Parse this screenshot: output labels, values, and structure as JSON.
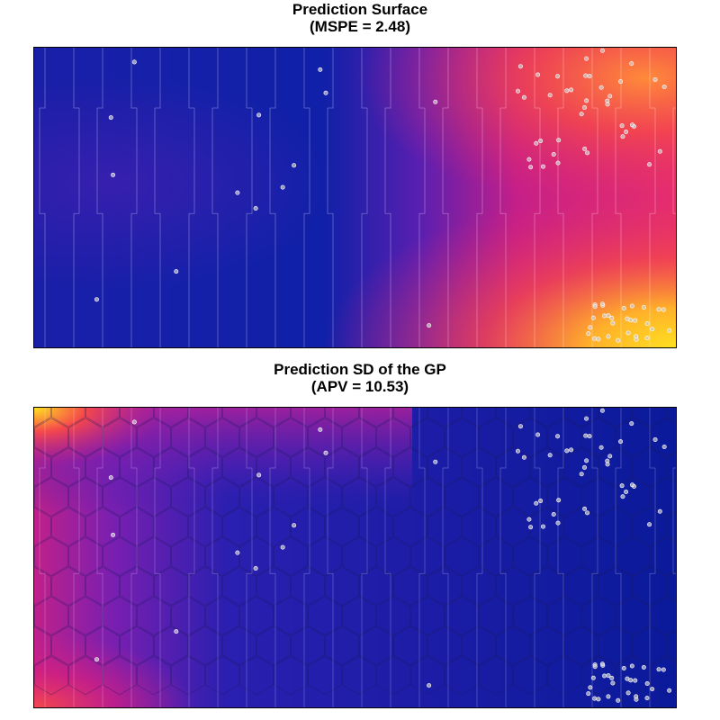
{
  "chart_data": [
    {
      "type": "heatmap",
      "title": "Prediction Surface",
      "subtitle": "(MSPE = 2.48)",
      "xlabel": "",
      "ylabel": "",
      "grid": false,
      "colormap": [
        "#0a1a9a",
        "#3a1fb0",
        "#8a1fa8",
        "#d81f7e",
        "#f5494a",
        "#ff8a2e",
        "#ffe21f"
      ],
      "hotspots": [
        {
          "region": "top-right",
          "level": 0.78
        },
        {
          "region": "bottom-right",
          "level": 1.0
        },
        {
          "region": "right-middle",
          "level": 0.6
        }
      ]
    },
    {
      "type": "heatmap",
      "title": "Prediction SD of the GP",
      "subtitle": "(APV = 10.53)",
      "xlabel": "",
      "ylabel": "",
      "grid": false,
      "colormap": [
        "#0a1a9a",
        "#3a1fb0",
        "#8a1fa8",
        "#d81f7e",
        "#f5494a",
        "#ff8a2e",
        "#ffe21f"
      ],
      "hotspots": [
        {
          "region": "top-left",
          "level": 1.0
        },
        {
          "region": "left-edge",
          "level": 0.6
        },
        {
          "region": "bottom-left",
          "level": 0.7
        }
      ]
    }
  ]
}
